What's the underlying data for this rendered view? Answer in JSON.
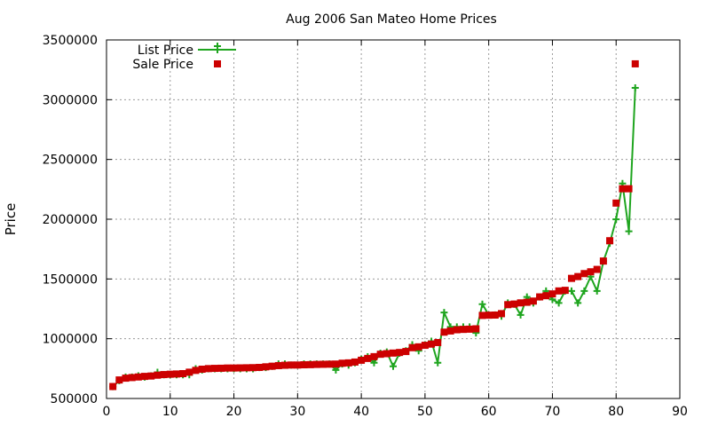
{
  "chart_data": {
    "type": "line",
    "title": "Aug 2006 San Mateo Home Prices",
    "xlabel": "",
    "ylabel": "Price",
    "xlim": [
      0,
      90
    ],
    "ylim": [
      500000,
      3500000
    ],
    "xticks": [
      0,
      10,
      20,
      30,
      40,
      50,
      60,
      70,
      80,
      90
    ],
    "yticks": [
      500000,
      1000000,
      1500000,
      2000000,
      2500000,
      3000000,
      3500000
    ],
    "grid": true,
    "legend_position": "top-left",
    "colors": {
      "list": "#1fa51f",
      "sale": "#cc0000"
    },
    "series": [
      {
        "name": "List Price",
        "style": "line+plus",
        "x": [
          1,
          2,
          3,
          4,
          5,
          6,
          7,
          8,
          9,
          10,
          11,
          12,
          13,
          14,
          15,
          16,
          17,
          18,
          19,
          20,
          21,
          22,
          23,
          24,
          25,
          26,
          27,
          28,
          29,
          30,
          31,
          32,
          33,
          34,
          35,
          36,
          37,
          38,
          39,
          40,
          41,
          42,
          43,
          44,
          45,
          46,
          47,
          48,
          49,
          50,
          51,
          52,
          53,
          54,
          55,
          56,
          57,
          58,
          59,
          60,
          61,
          62,
          63,
          64,
          65,
          66,
          67,
          68,
          69,
          70,
          71,
          72,
          73,
          74,
          75,
          76,
          77,
          78,
          79,
          80,
          81,
          82,
          83
        ],
        "values": [
          599000,
          649000,
          679000,
          679000,
          689000,
          679000,
          689000,
          719000,
          699000,
          699000,
          699000,
          699000,
          699000,
          749000,
          739000,
          749000,
          749000,
          749000,
          749000,
          749000,
          749000,
          749000,
          749000,
          759000,
          759000,
          769000,
          789000,
          789000,
          779000,
          779000,
          789000,
          789000,
          789000,
          789000,
          789000,
          739000,
          789000,
          779000,
          799000,
          829000,
          849000,
          799000,
          879000,
          889000,
          769000,
          879000,
          899000,
          949000,
          899000,
          949000,
          979000,
          799000,
          1219000,
          1099000,
          1099000,
          1099000,
          1099000,
          1049000,
          1289000,
          1199000,
          1199000,
          1189000,
          1299000,
          1289000,
          1199000,
          1349000,
          1299000,
          1349000,
          1399000,
          1329000,
          1299000,
          1399000,
          1399000,
          1299000,
          1399000,
          1519000,
          1399000,
          1649000,
          1799000,
          1999000,
          2299000,
          1899000,
          3099000
        ]
      },
      {
        "name": "Sale Price",
        "style": "squares",
        "x": [
          1,
          2,
          3,
          4,
          5,
          6,
          7,
          8,
          9,
          10,
          11,
          12,
          13,
          14,
          15,
          16,
          17,
          18,
          19,
          20,
          21,
          22,
          23,
          24,
          25,
          26,
          27,
          28,
          29,
          30,
          31,
          32,
          33,
          34,
          35,
          36,
          37,
          38,
          39,
          40,
          41,
          42,
          43,
          44,
          45,
          46,
          47,
          48,
          49,
          50,
          51,
          52,
          53,
          54,
          55,
          56,
          57,
          58,
          59,
          60,
          61,
          62,
          63,
          64,
          65,
          66,
          67,
          68,
          69,
          70,
          71,
          72,
          73,
          74,
          75,
          76,
          77,
          78,
          79,
          80,
          81,
          82,
          83
        ],
        "values": [
          600000,
          655000,
          670000,
          675000,
          680000,
          685000,
          688000,
          695000,
          700000,
          703000,
          705000,
          708000,
          720000,
          735000,
          745000,
          750000,
          752000,
          753000,
          755000,
          755000,
          756000,
          757000,
          758000,
          760000,
          765000,
          770000,
          775000,
          778000,
          780000,
          780000,
          782000,
          783000,
          785000,
          786000,
          787000,
          788000,
          795000,
          798000,
          805000,
          820000,
          835000,
          850000,
          870000,
          875000,
          880000,
          885000,
          893000,
          925000,
          932000,
          945000,
          955000,
          968000,
          1055000,
          1065000,
          1075000,
          1078000,
          1080000,
          1083000,
          1195000,
          1197000,
          1198000,
          1210000,
          1285000,
          1290000,
          1300000,
          1305000,
          1315000,
          1350000,
          1360000,
          1375000,
          1400000,
          1405000,
          1505000,
          1520000,
          1545000,
          1560000,
          1580000,
          1650000,
          1820000,
          2135000,
          2255000,
          2255000,
          3300000
        ]
      }
    ]
  }
}
